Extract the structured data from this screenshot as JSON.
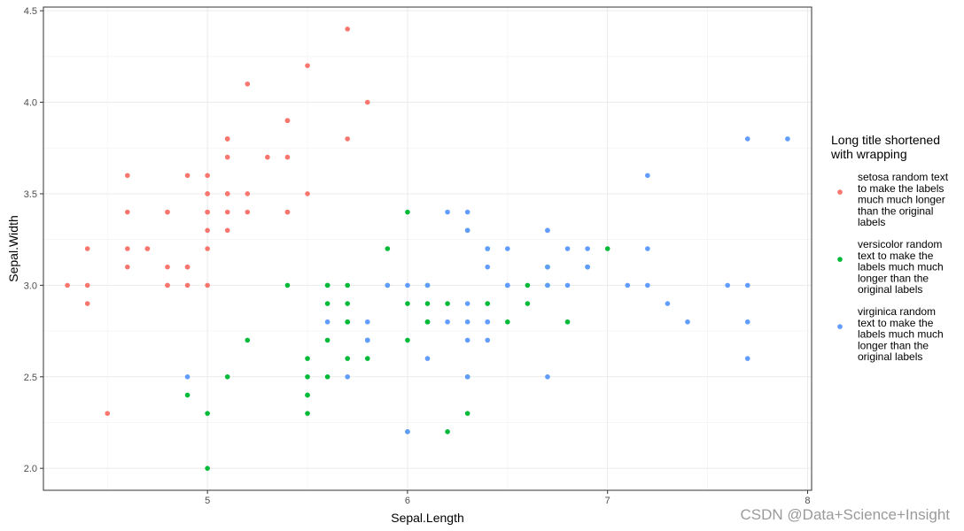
{
  "chart_data": {
    "type": "scatter",
    "xlabel": "Sepal.Length",
    "ylabel": "Sepal.Width",
    "xlim": [
      4.18,
      8.02
    ],
    "ylim": [
      1.88,
      4.52
    ],
    "xticks": [
      5,
      6,
      7,
      8
    ],
    "xtick_labels": [
      "5",
      "6",
      "7",
      "8"
    ],
    "yticks": [
      2.0,
      2.5,
      3.0,
      3.5,
      4.0,
      4.5
    ],
    "ytick_labels": [
      "2.0",
      "2.5",
      "3.0",
      "3.5",
      "4.0",
      "4.5"
    ],
    "grid": true,
    "legend_position": "right",
    "legend_title": [
      "Long title shortened",
      "with wrapping"
    ],
    "series": [
      {
        "name": [
          "setosa random text",
          "to make the labels",
          "much much longer",
          "than the original",
          "labels"
        ],
        "color": "#F8766D",
        "points": [
          [
            5.1,
            3.5
          ],
          [
            4.9,
            3.0
          ],
          [
            4.7,
            3.2
          ],
          [
            4.6,
            3.1
          ],
          [
            5.0,
            3.6
          ],
          [
            5.4,
            3.9
          ],
          [
            4.6,
            3.4
          ],
          [
            5.0,
            3.4
          ],
          [
            4.4,
            2.9
          ],
          [
            4.9,
            3.1
          ],
          [
            5.4,
            3.7
          ],
          [
            4.8,
            3.4
          ],
          [
            4.8,
            3.0
          ],
          [
            4.3,
            3.0
          ],
          [
            5.8,
            4.0
          ],
          [
            5.7,
            4.4
          ],
          [
            5.4,
            3.9
          ],
          [
            5.1,
            3.5
          ],
          [
            5.7,
            3.8
          ],
          [
            5.1,
            3.8
          ],
          [
            5.4,
            3.4
          ],
          [
            5.1,
            3.7
          ],
          [
            4.6,
            3.6
          ],
          [
            5.1,
            3.3
          ],
          [
            4.8,
            3.4
          ],
          [
            5.0,
            3.0
          ],
          [
            5.0,
            3.4
          ],
          [
            5.2,
            3.5
          ],
          [
            5.2,
            3.4
          ],
          [
            4.7,
            3.2
          ],
          [
            4.8,
            3.1
          ],
          [
            5.4,
            3.4
          ],
          [
            5.2,
            4.1
          ],
          [
            5.5,
            4.2
          ],
          [
            4.9,
            3.1
          ],
          [
            5.0,
            3.2
          ],
          [
            5.5,
            3.5
          ],
          [
            4.9,
            3.6
          ],
          [
            4.4,
            3.0
          ],
          [
            5.1,
            3.4
          ],
          [
            5.0,
            3.5
          ],
          [
            4.5,
            2.3
          ],
          [
            4.4,
            3.2
          ],
          [
            5.0,
            3.5
          ],
          [
            5.1,
            3.8
          ],
          [
            4.8,
            3.0
          ],
          [
            5.1,
            3.8
          ],
          [
            4.6,
            3.2
          ],
          [
            5.3,
            3.7
          ],
          [
            5.0,
            3.3
          ]
        ]
      },
      {
        "name": [
          "versicolor random",
          "text to make the",
          "labels much much",
          "longer than the",
          "original labels"
        ],
        "color": "#00BA38",
        "points": [
          [
            7.0,
            3.2
          ],
          [
            6.4,
            3.2
          ],
          [
            6.9,
            3.1
          ],
          [
            5.5,
            2.3
          ],
          [
            6.5,
            2.8
          ],
          [
            5.7,
            2.8
          ],
          [
            6.3,
            3.3
          ],
          [
            4.9,
            2.4
          ],
          [
            6.6,
            2.9
          ],
          [
            5.2,
            2.7
          ],
          [
            5.0,
            2.0
          ],
          [
            5.9,
            3.0
          ],
          [
            6.0,
            2.2
          ],
          [
            6.1,
            2.9
          ],
          [
            5.6,
            2.9
          ],
          [
            6.7,
            3.1
          ],
          [
            5.6,
            3.0
          ],
          [
            5.8,
            2.7
          ],
          [
            6.2,
            2.2
          ],
          [
            5.6,
            2.5
          ],
          [
            5.9,
            3.2
          ],
          [
            6.1,
            2.8
          ],
          [
            6.3,
            2.5
          ],
          [
            6.1,
            2.8
          ],
          [
            6.4,
            2.9
          ],
          [
            6.6,
            3.0
          ],
          [
            6.8,
            2.8
          ],
          [
            6.7,
            3.0
          ],
          [
            6.0,
            2.9
          ],
          [
            5.7,
            2.6
          ],
          [
            5.5,
            2.4
          ],
          [
            5.5,
            2.4
          ],
          [
            5.8,
            2.7
          ],
          [
            6.0,
            2.7
          ],
          [
            5.4,
            3.0
          ],
          [
            6.0,
            3.4
          ],
          [
            6.7,
            3.1
          ],
          [
            6.3,
            2.3
          ],
          [
            5.6,
            3.0
          ],
          [
            5.5,
            2.5
          ],
          [
            5.5,
            2.6
          ],
          [
            6.1,
            3.0
          ],
          [
            5.8,
            2.6
          ],
          [
            5.0,
            2.3
          ],
          [
            5.6,
            2.7
          ],
          [
            5.7,
            3.0
          ],
          [
            5.7,
            2.9
          ],
          [
            6.2,
            2.9
          ],
          [
            5.1,
            2.5
          ],
          [
            5.7,
            2.8
          ]
        ]
      },
      {
        "name": [
          "virginica random",
          "text to make the",
          "labels much much",
          "longer than the",
          "original labels"
        ],
        "color": "#619CFF",
        "points": [
          [
            6.3,
            3.3
          ],
          [
            5.8,
            2.7
          ],
          [
            7.1,
            3.0
          ],
          [
            6.3,
            2.9
          ],
          [
            6.5,
            3.0
          ],
          [
            7.6,
            3.0
          ],
          [
            4.9,
            2.5
          ],
          [
            7.3,
            2.9
          ],
          [
            6.7,
            2.5
          ],
          [
            7.2,
            3.6
          ],
          [
            6.5,
            3.2
          ],
          [
            6.4,
            2.7
          ],
          [
            6.8,
            3.0
          ],
          [
            5.7,
            2.5
          ],
          [
            5.8,
            2.8
          ],
          [
            6.4,
            3.2
          ],
          [
            6.5,
            3.0
          ],
          [
            7.7,
            3.8
          ],
          [
            7.7,
            2.6
          ],
          [
            6.0,
            2.2
          ],
          [
            6.9,
            3.2
          ],
          [
            5.6,
            2.8
          ],
          [
            7.7,
            2.8
          ],
          [
            6.3,
            2.7
          ],
          [
            6.7,
            3.3
          ],
          [
            7.2,
            3.2
          ],
          [
            6.2,
            2.8
          ],
          [
            6.1,
            3.0
          ],
          [
            6.4,
            2.8
          ],
          [
            7.2,
            3.0
          ],
          [
            7.4,
            2.8
          ],
          [
            7.9,
            3.8
          ],
          [
            6.4,
            2.8
          ],
          [
            6.3,
            2.8
          ],
          [
            6.1,
            2.6
          ],
          [
            7.7,
            3.0
          ],
          [
            6.3,
            3.4
          ],
          [
            6.4,
            3.1
          ],
          [
            6.0,
            3.0
          ],
          [
            6.9,
            3.1
          ],
          [
            6.7,
            3.1
          ],
          [
            6.9,
            3.1
          ],
          [
            5.8,
            2.7
          ],
          [
            6.8,
            3.2
          ],
          [
            6.7,
            3.3
          ],
          [
            6.7,
            3.0
          ],
          [
            6.3,
            2.5
          ],
          [
            6.5,
            3.0
          ],
          [
            6.2,
            3.4
          ],
          [
            5.9,
            3.0
          ]
        ]
      }
    ]
  },
  "watermark": "CSDN @Data+Science+Insight"
}
